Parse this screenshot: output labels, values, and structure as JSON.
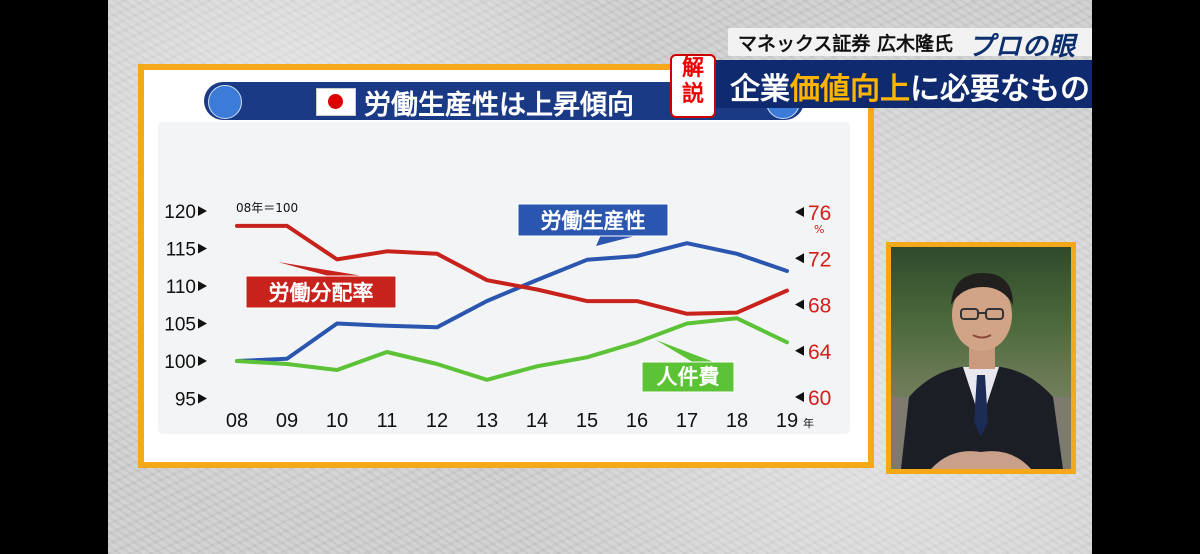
{
  "header": {
    "speaker": "マネックス証券 広木隆氏",
    "brand": "プロの眼",
    "badge": [
      "解",
      "説"
    ],
    "headline_parts": [
      "企業",
      "価値向上",
      "に必要なもの"
    ]
  },
  "colors": {
    "labor_productivity": "#2a56b0",
    "labor_share": "#c8221c",
    "personnel_cost": "#5cc236",
    "panel_border": "#f5a81a",
    "header_bar": "#0f2a6e"
  },
  "chart_data": {
    "type": "line",
    "title": "労働生産性は上昇傾向",
    "flag": "japan-flag-icon",
    "note": "08年＝100",
    "categories": [
      "08",
      "09",
      "10",
      "11",
      "12",
      "13",
      "14",
      "15",
      "16",
      "17",
      "18",
      "19"
    ],
    "x_unit": "年",
    "left_axis": {
      "ticks": [
        95,
        100,
        105,
        110,
        115,
        120
      ],
      "ylim": [
        95,
        120
      ]
    },
    "right_axis": {
      "ticks": [
        60,
        64,
        68,
        72,
        76
      ],
      "unit": "%",
      "ylim": [
        60,
        76
      ]
    },
    "series": [
      {
        "name": "労働生産性",
        "axis": "left",
        "values": [
          100,
          100.3,
          105,
          104.7,
          104.5,
          108,
          110.8,
          113.5,
          114,
          115.7,
          114.3,
          112
        ]
      },
      {
        "name": "人件費",
        "axis": "left",
        "values": [
          100,
          99.6,
          98.8,
          101.2,
          99.6,
          97.5,
          99.3,
          100.5,
          102.5,
          105,
          105.7,
          102.5
        ]
      },
      {
        "name": "労働分配率",
        "axis": "right",
        "values": [
          74.8,
          74.8,
          71.9,
          72.6,
          72.4,
          70.1,
          69.3,
          68.3,
          68.3,
          67.2,
          67.3,
          69.2
        ]
      }
    ],
    "legend": "inline-labels",
    "grid": false
  }
}
